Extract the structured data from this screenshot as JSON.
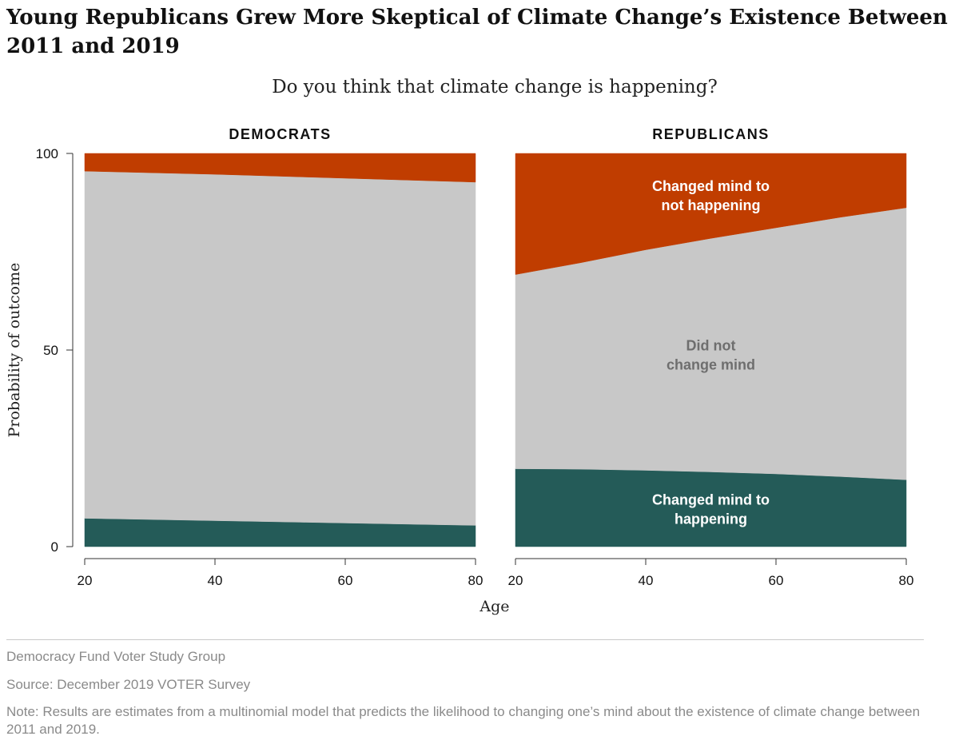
{
  "title": "Young Republicans Grew More Skeptical of Climate Change’s Existence Between 2011 and 2019",
  "subtitle": "Do you think that climate change is happening?",
  "footer": {
    "org": "Democracy Fund Voter Study Group",
    "source": "Source: December 2019 VOTER Survey",
    "note": "Note: Results are estimates from a multinomial model that predicts the likelihood to changing one’s mind about the existence of climate change between 2011 and 2019."
  },
  "chart_data": {
    "type": "area",
    "stacked": true,
    "xlabel": "Age",
    "ylabel": "Probability of outcome",
    "xlim": [
      20,
      80
    ],
    "ylim": [
      0,
      100
    ],
    "xticks": [
      20,
      40,
      60,
      80
    ],
    "yticks": [
      0,
      50,
      100
    ],
    "colors": {
      "Changed mind to happening": "#245b58",
      "Did not change mind": "#c8c8c8",
      "Changed mind to not happening": "#c03d00"
    },
    "panels": [
      {
        "title": "DEMOCRATS",
        "x": [
          20,
          30,
          40,
          50,
          60,
          70,
          80
        ],
        "series": [
          {
            "name": "Changed mind to happening",
            "values": [
              7.2,
              6.9,
              6.6,
              6.3,
              6.0,
              5.7,
              5.4
            ]
          },
          {
            "name": "Did not change mind",
            "values": [
              88.3,
              88.2,
              88.1,
              87.9,
              87.7,
              87.5,
              87.3
            ]
          },
          {
            "name": "Changed mind to not happening",
            "values": [
              4.5,
              4.9,
              5.3,
              5.8,
              6.3,
              6.8,
              7.3
            ]
          }
        ]
      },
      {
        "title": "REPUBLICANS",
        "x": [
          20,
          30,
          40,
          50,
          60,
          70,
          80
        ],
        "series": [
          {
            "name": "Changed mind to happening",
            "values": [
              19.8,
              19.7,
              19.4,
              19.0,
              18.5,
              17.8,
              17.0
            ]
          },
          {
            "name": "Did not change mind",
            "values": [
              49.4,
              52.5,
              56.1,
              59.4,
              62.6,
              66.0,
              69.2
            ]
          },
          {
            "name": "Changed mind to not happening",
            "values": [
              30.8,
              27.8,
              24.5,
              21.6,
              18.9,
              16.2,
              13.8
            ]
          }
        ],
        "area_labels": [
          {
            "series": "Changed mind to not happening",
            "lines": [
              "Changed mind to",
              "not happening"
            ],
            "color": "#ffffff"
          },
          {
            "series": "Did not change mind",
            "lines": [
              "Did not",
              "change mind"
            ],
            "color": "#6e6e6e"
          },
          {
            "series": "Changed mind to happening",
            "lines": [
              "Changed mind to",
              "happening"
            ],
            "color": "#ffffff"
          }
        ]
      }
    ]
  }
}
